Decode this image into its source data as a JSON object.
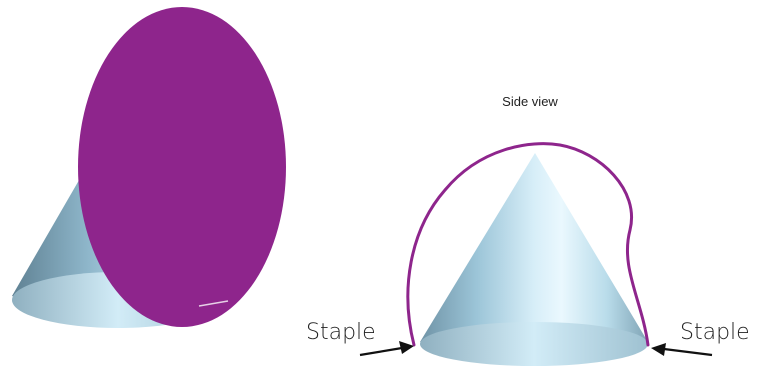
{
  "labels": {
    "side_view": "Side view",
    "staple_left": "Staple",
    "staple_right": "Staple"
  },
  "colors": {
    "disc": "#8e258c",
    "outline": "#8e258c",
    "cone_light": "#e6f6fd",
    "cone_mid": "#a9d3e6",
    "cone_dark": "#5d7f92",
    "arrow": "#111111"
  }
}
